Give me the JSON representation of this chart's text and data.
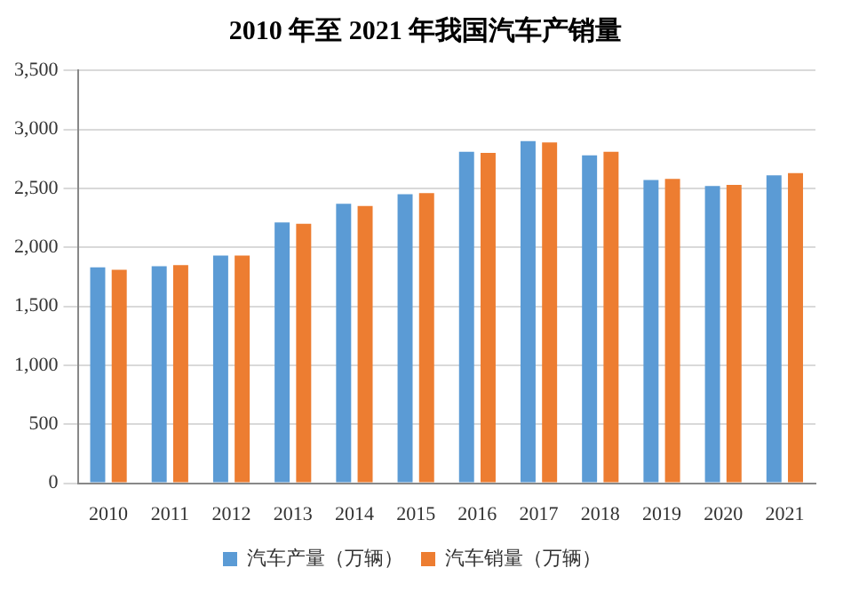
{
  "chart_data": {
    "type": "bar",
    "title": "2010 年至 2021 年我国汽车产销量",
    "categories": [
      "2010",
      "2011",
      "2012",
      "2013",
      "2014",
      "2015",
      "2016",
      "2017",
      "2018",
      "2019",
      "2020",
      "2021"
    ],
    "series": [
      {
        "name": "汽车产量（万辆）",
        "color": "#5b9bd5",
        "values": [
          1830,
          1840,
          1930,
          2210,
          2370,
          2450,
          2810,
          2900,
          2780,
          2570,
          2520,
          2610
        ]
      },
      {
        "name": "汽车销量（万辆）",
        "color": "#ed7d31",
        "values": [
          1810,
          1850,
          1930,
          2200,
          2350,
          2460,
          2800,
          2890,
          2810,
          2580,
          2530,
          2630
        ]
      }
    ],
    "ylim": [
      0,
      3500
    ],
    "yticks": [
      0,
      500,
      {
        "value": 1000,
        "label": "1,000"
      },
      {
        "value": 1500,
        "label": "1,500"
      },
      {
        "value": 2000,
        "label": "2,000"
      },
      {
        "value": 2500,
        "label": "2,500"
      },
      {
        "value": 3000,
        "label": "3,000"
      },
      {
        "value": 3500,
        "label": "3,500"
      }
    ],
    "grid": "y",
    "legend": "bottom"
  }
}
